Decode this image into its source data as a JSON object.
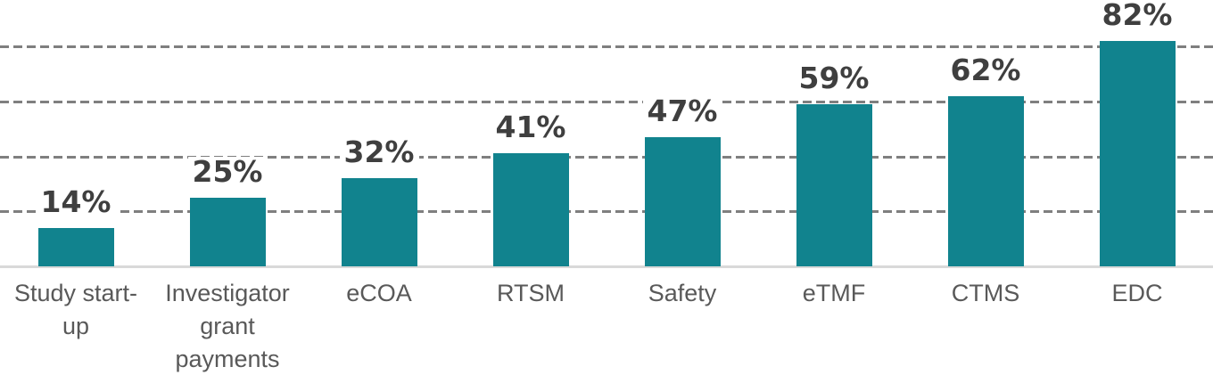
{
  "chart_data": {
    "type": "bar",
    "title": "",
    "categories": [
      "Study start-up",
      "Investigator grant payments",
      "eCOA",
      "RTSM",
      "Safety",
      "eTMF",
      "CTMS",
      "EDC"
    ],
    "category_lines": [
      [
        "Study start-",
        "up"
      ],
      [
        "Investigator",
        "grant",
        "payments"
      ],
      [
        "eCOA"
      ],
      [
        "RTSM"
      ],
      [
        "Safety"
      ],
      [
        "eTMF"
      ],
      [
        "CTMS"
      ],
      [
        "EDC"
      ]
    ],
    "values": [
      14,
      25,
      32,
      41,
      47,
      59,
      62,
      82
    ],
    "data_labels": [
      "14%",
      "25%",
      "32%",
      "41%",
      "47%",
      "59%",
      "62%",
      "82%"
    ],
    "xlabel": "",
    "ylabel": "",
    "ylim": [
      0,
      85
    ],
    "gridline_values": [
      20,
      40,
      60,
      80
    ],
    "grid": true,
    "legend": "none",
    "colors": {
      "bar": "#11838E",
      "value_label": "#3F3F3F",
      "category_label": "#595959",
      "gridline": "#7F7F7F",
      "axis_line": "#D9D9D9",
      "background": "#FFFFFF"
    }
  }
}
